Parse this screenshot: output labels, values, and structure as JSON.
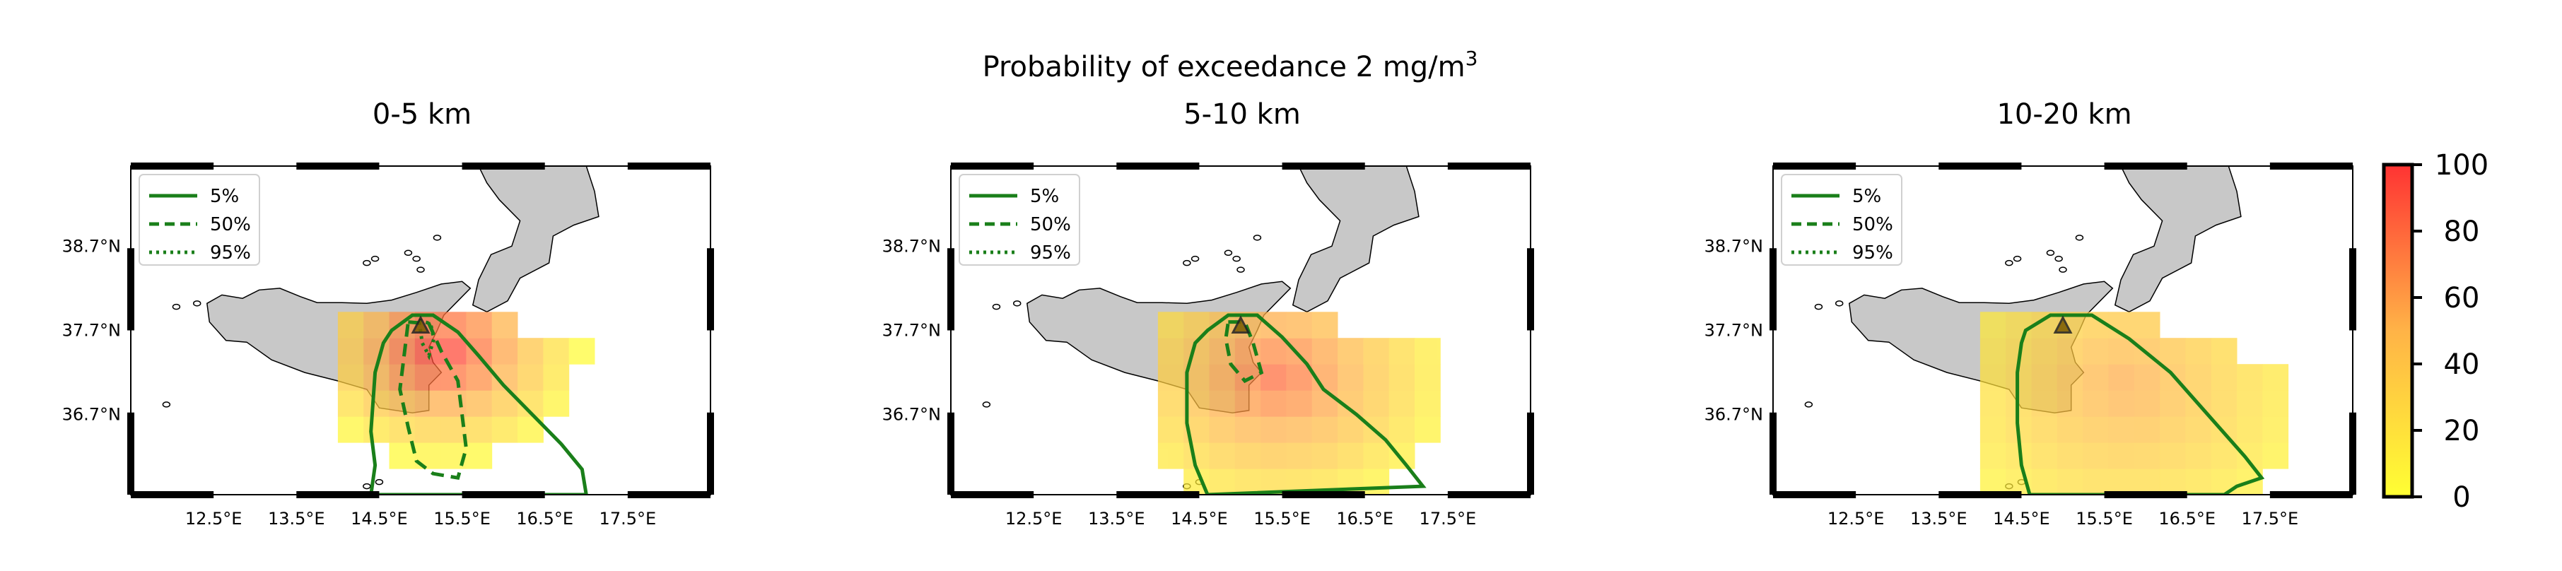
{
  "figure": {
    "suptitle": "Probability of exceedance 2 mg/m",
    "suptitle_sup": "3"
  },
  "chart_data": {
    "type": "heatmap",
    "legend": {
      "placement": "upper-left",
      "entries": [
        {
          "label": "5%",
          "style": "solid",
          "color": "#1a7f1a"
        },
        {
          "label": "50%",
          "style": "dashed",
          "color": "#1a7f1a"
        },
        {
          "label": "95%",
          "style": "dotted",
          "color": "#1a7f1a"
        }
      ]
    },
    "x_ticks": [
      "12.5°E",
      "13.5°E",
      "14.5°E",
      "15.5°E",
      "16.5°E",
      "17.5°E"
    ],
    "y_ticks": [
      "38.7°N",
      "37.7°N",
      "36.7°N"
    ],
    "xlim": [
      11.5,
      18.5
    ],
    "ylim": [
      35.75,
      39.65
    ],
    "colorbar": {
      "ticks": [
        "100",
        "80",
        "60",
        "40",
        "20",
        "0"
      ],
      "range": [
        0,
        100
      ],
      "colors": [
        "#ffff33",
        "#ffb347",
        "#ff3333"
      ]
    },
    "source": {
      "lon": 15.0,
      "lat": 37.75
    },
    "panels": [
      {
        "title": "0-5 km",
        "key": "p0"
      },
      {
        "title": "5-10 km",
        "key": "p1"
      },
      {
        "title": "10-20 km",
        "key": "p2"
      }
    ]
  }
}
